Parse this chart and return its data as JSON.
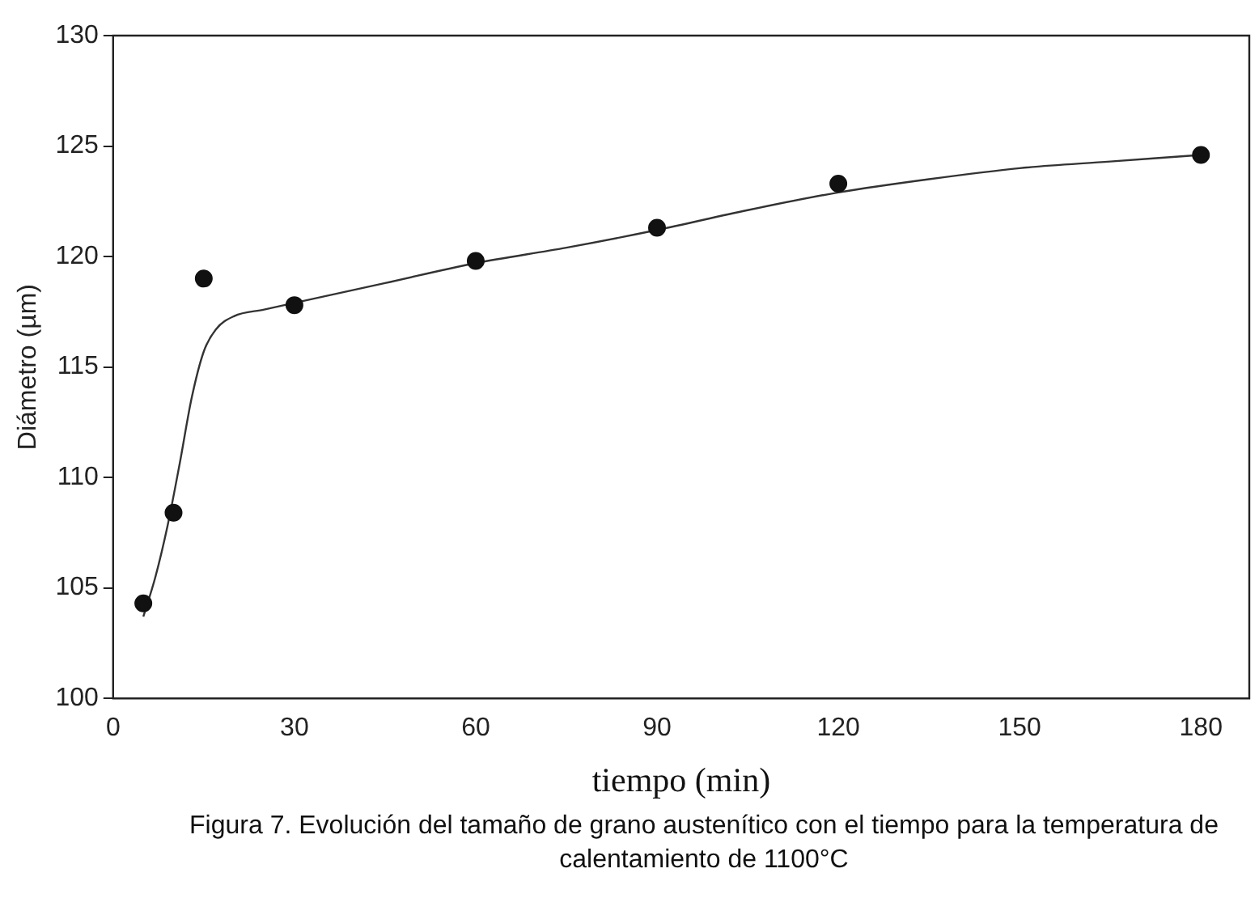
{
  "chart_data": {
    "type": "scatter",
    "xlabel": "tiempo (min)",
    "ylabel": "Diámetro (µm)",
    "xlim": [
      0,
      188
    ],
    "xticks": [
      0,
      30,
      60,
      90,
      120,
      150,
      180
    ],
    "ylim": [
      100,
      130
    ],
    "yticks": [
      100,
      105,
      110,
      115,
      120,
      125,
      130
    ],
    "grid": false,
    "legend": false,
    "series": [
      {
        "color": "#111111",
        "marker": "circle",
        "x": [
          5,
          10,
          15,
          30,
          60,
          90,
          120,
          180
        ],
        "values": [
          104.3,
          108.4,
          119.0,
          117.8,
          119.8,
          121.3,
          123.3,
          124.6
        ]
      },
      {
        "type": "line",
        "color": "#333333",
        "marker": "none",
        "line_style": "solid",
        "x": [
          5,
          7,
          9,
          11,
          13,
          15,
          17,
          20,
          25,
          30,
          45,
          60,
          75,
          90,
          105,
          120,
          135,
          150,
          165,
          180
        ],
        "values": [
          103.7,
          105.5,
          107.8,
          110.6,
          113.6,
          115.7,
          116.7,
          117.3,
          117.6,
          117.9,
          118.8,
          119.7,
          120.4,
          121.2,
          122.1,
          122.9,
          123.5,
          124.0,
          124.3,
          124.6
        ]
      }
    ],
    "annotations": [
      "Figura 7.  Evolución del tamaño de grano austenítico con el tiempo para la temperatura de calentamiento de 1100°C"
    ]
  }
}
